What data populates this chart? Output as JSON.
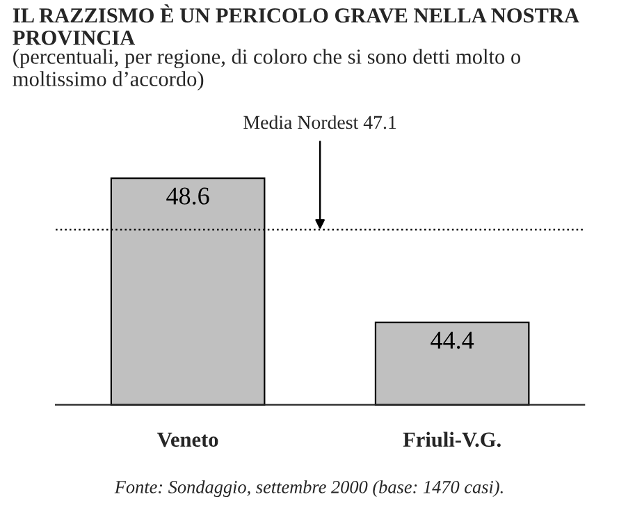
{
  "chart_data": {
    "type": "bar",
    "title": "IL RAZZISMO È UN PERICOLO GRAVE NELLA NOSTRA PROVINCIA",
    "subtitle": "(percentuali, per regione, di coloro che si sono detti molto o moltissimo d’accordo)",
    "categories": [
      "Veneto",
      "Friuli-V.G."
    ],
    "values": [
      48.6,
      44.4
    ],
    "color": "#c0c0c0",
    "data_labels": true,
    "ylim": [
      42,
      48.6
    ],
    "tick_labels": "x",
    "ref_lines": [
      {
        "axis": "y",
        "value": 47.1,
        "label": "Media Nordest 47.1",
        "line_style": "dotted",
        "color": "#000000"
      }
    ],
    "annotations": [
      "Fonte: Sondaggio, settembre 2000 (base: 1470 casi)."
    ]
  }
}
